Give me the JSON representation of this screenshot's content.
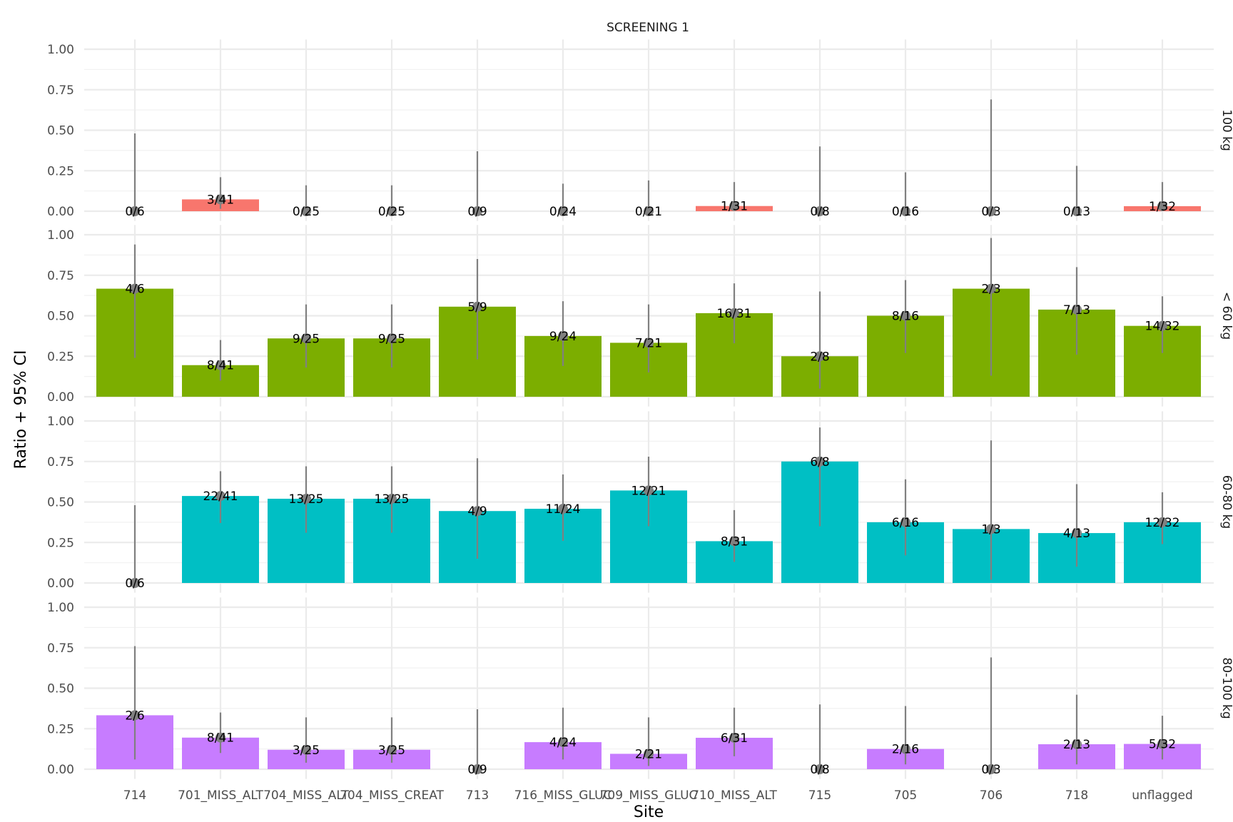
{
  "chart_data": {
    "type": "bar",
    "title": "SCREENING 1",
    "xlabel": "Site",
    "ylabel": "Ratio + 95% CI",
    "ylim": [
      0,
      1
    ],
    "yticks": [
      "0.00",
      "0.25",
      "0.50",
      "0.75",
      "1.00"
    ],
    "grid": true,
    "categories": [
      "714",
      "701_MISS_ALT",
      "704_MISS_ALT",
      "704_MISS_CREAT",
      "713",
      "716_MISS_GLUC",
      "709_MISS_GLUC",
      "710_MISS_ALT",
      "715",
      "705",
      "706",
      "718",
      "unflagged"
    ],
    "facets": [
      {
        "strip": "100 kg",
        "color": "#F8766D",
        "values": [
          {
            "label": "0/6",
            "ratio": 0,
            "ci": [
              0,
              0.48
            ]
          },
          {
            "label": "3/41",
            "ratio": 0.073,
            "ci": [
              0.015,
              0.21
            ]
          },
          {
            "label": "0/25",
            "ratio": 0,
            "ci": [
              0,
              0.16
            ]
          },
          {
            "label": "0/25",
            "ratio": 0,
            "ci": [
              0,
              0.16
            ]
          },
          {
            "label": "0/9",
            "ratio": 0,
            "ci": [
              0,
              0.37
            ]
          },
          {
            "label": "0/24",
            "ratio": 0,
            "ci": [
              0,
              0.17
            ]
          },
          {
            "label": "0/21",
            "ratio": 0,
            "ci": [
              0,
              0.19
            ]
          },
          {
            "label": "1/31",
            "ratio": 0.032,
            "ci": [
              0.001,
              0.18
            ]
          },
          {
            "label": "0/8",
            "ratio": 0,
            "ci": [
              0,
              0.4
            ]
          },
          {
            "label": "0/16",
            "ratio": 0,
            "ci": [
              0,
              0.24
            ]
          },
          {
            "label": "0/3",
            "ratio": 0,
            "ci": [
              0,
              0.69
            ]
          },
          {
            "label": "0/13",
            "ratio": 0,
            "ci": [
              0,
              0.28
            ]
          },
          {
            "label": "1/32",
            "ratio": 0.031,
            "ci": [
              0.001,
              0.18
            ]
          }
        ]
      },
      {
        "strip": "< 60 kg",
        "color": "#7CAE00",
        "values": [
          {
            "label": "4/6",
            "ratio": 0.667,
            "ci": [
              0.24,
              0.94
            ]
          },
          {
            "label": "8/41",
            "ratio": 0.195,
            "ci": [
              0.1,
              0.35
            ]
          },
          {
            "label": "9/25",
            "ratio": 0.36,
            "ci": [
              0.18,
              0.57
            ]
          },
          {
            "label": "9/25",
            "ratio": 0.36,
            "ci": [
              0.18,
              0.57
            ]
          },
          {
            "label": "5/9",
            "ratio": 0.556,
            "ci": [
              0.23,
              0.85
            ]
          },
          {
            "label": "9/24",
            "ratio": 0.375,
            "ci": [
              0.19,
              0.59
            ]
          },
          {
            "label": "7/21",
            "ratio": 0.333,
            "ci": [
              0.15,
              0.57
            ]
          },
          {
            "label": "16/31",
            "ratio": 0.516,
            "ci": [
              0.33,
              0.7
            ]
          },
          {
            "label": "2/8",
            "ratio": 0.25,
            "ci": [
              0.05,
              0.65
            ]
          },
          {
            "label": "8/16",
            "ratio": 0.5,
            "ci": [
              0.27,
              0.72
            ]
          },
          {
            "label": "2/3",
            "ratio": 0.667,
            "ci": [
              0.13,
              0.98
            ]
          },
          {
            "label": "7/13",
            "ratio": 0.538,
            "ci": [
              0.26,
              0.8
            ]
          },
          {
            "label": "14/32",
            "ratio": 0.4375,
            "ci": [
              0.27,
              0.62
            ]
          }
        ]
      },
      {
        "strip": "60-80 kg",
        "color": "#00BFC4",
        "values": [
          {
            "label": "0/6",
            "ratio": 0,
            "ci": [
              0,
              0.48
            ]
          },
          {
            "label": "22/41",
            "ratio": 0.537,
            "ci": [
              0.37,
              0.69
            ]
          },
          {
            "label": "13/25",
            "ratio": 0.52,
            "ci": [
              0.31,
              0.72
            ]
          },
          {
            "label": "13/25",
            "ratio": 0.52,
            "ci": [
              0.31,
              0.72
            ]
          },
          {
            "label": "4/9",
            "ratio": 0.444,
            "ci": [
              0.15,
              0.77
            ]
          },
          {
            "label": "11/24",
            "ratio": 0.458,
            "ci": [
              0.26,
              0.67
            ]
          },
          {
            "label": "12/21",
            "ratio": 0.571,
            "ci": [
              0.35,
              0.78
            ]
          },
          {
            "label": "8/31",
            "ratio": 0.258,
            "ci": [
              0.13,
              0.45
            ]
          },
          {
            "label": "6/8",
            "ratio": 0.75,
            "ci": [
              0.35,
              0.96
            ]
          },
          {
            "label": "6/16",
            "ratio": 0.375,
            "ci": [
              0.17,
              0.64
            ]
          },
          {
            "label": "1/3",
            "ratio": 0.333,
            "ci": [
              0.02,
              0.88
            ]
          },
          {
            "label": "4/13",
            "ratio": 0.308,
            "ci": [
              0.1,
              0.61
            ]
          },
          {
            "label": "12/32",
            "ratio": 0.375,
            "ci": [
              0.24,
              0.56
            ]
          }
        ]
      },
      {
        "strip": "80-100 kg",
        "color": "#C77CFF",
        "values": [
          {
            "label": "2/6",
            "ratio": 0.333,
            "ci": [
              0.06,
              0.76
            ]
          },
          {
            "label": "8/41",
            "ratio": 0.195,
            "ci": [
              0.1,
              0.35
            ]
          },
          {
            "label": "3/25",
            "ratio": 0.12,
            "ci": [
              0.04,
              0.32
            ]
          },
          {
            "label": "3/25",
            "ratio": 0.12,
            "ci": [
              0.04,
              0.32
            ]
          },
          {
            "label": "0/9",
            "ratio": 0,
            "ci": [
              0,
              0.37
            ]
          },
          {
            "label": "4/24",
            "ratio": 0.167,
            "ci": [
              0.06,
              0.38
            ]
          },
          {
            "label": "2/21",
            "ratio": 0.095,
            "ci": [
              0.02,
              0.32
            ]
          },
          {
            "label": "6/31",
            "ratio": 0.194,
            "ci": [
              0.08,
              0.38
            ]
          },
          {
            "label": "0/8",
            "ratio": 0,
            "ci": [
              0,
              0.4
            ]
          },
          {
            "label": "2/16",
            "ratio": 0.125,
            "ci": [
              0.03,
              0.39
            ]
          },
          {
            "label": "0/3",
            "ratio": 0,
            "ci": [
              0,
              0.69
            ]
          },
          {
            "label": "2/13",
            "ratio": 0.154,
            "ci": [
              0.03,
              0.46
            ]
          },
          {
            "label": "5/32",
            "ratio": 0.156,
            "ci": [
              0.06,
              0.33
            ]
          }
        ]
      }
    ],
    "errorbar_color": "#808080"
  }
}
